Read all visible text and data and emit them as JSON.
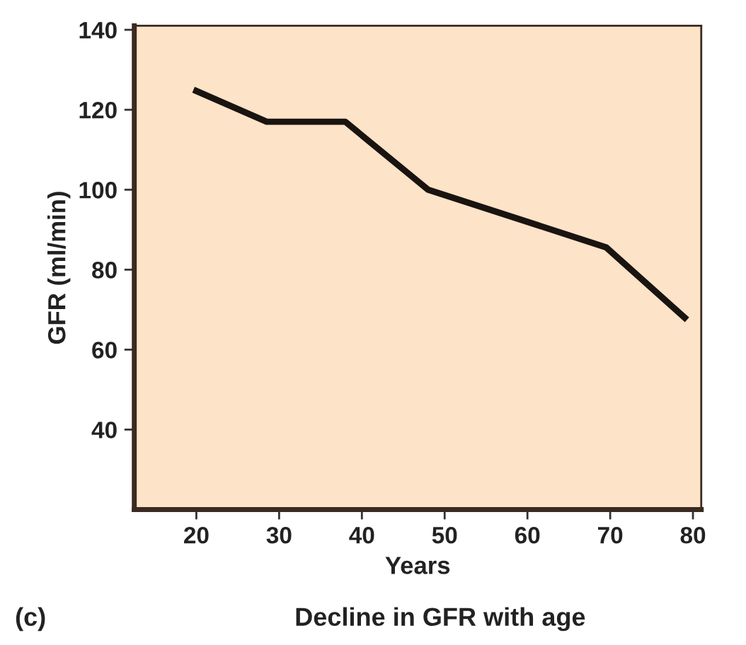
{
  "chart_data": {
    "type": "line",
    "title": "Decline in GFR with age",
    "xlabel": "Years",
    "ylabel": "GFR (ml/min)",
    "annotations": [
      "(c)"
    ],
    "x": [
      20,
      28.5,
      38,
      48,
      69.5,
      79
    ],
    "series": [
      {
        "color": "#1a1410",
        "values": [
          124.7,
          117,
          117,
          100,
          85.6,
          68
        ]
      }
    ],
    "xlim": [
      12.5,
      81
    ],
    "xticks": [
      20,
      30,
      40,
      50,
      60,
      70,
      80
    ],
    "ylim": [
      20,
      141
    ],
    "yticks": [
      40,
      60,
      80,
      100,
      120,
      140
    ],
    "grid": false,
    "marker": "none",
    "line_style": "solid"
  }
}
